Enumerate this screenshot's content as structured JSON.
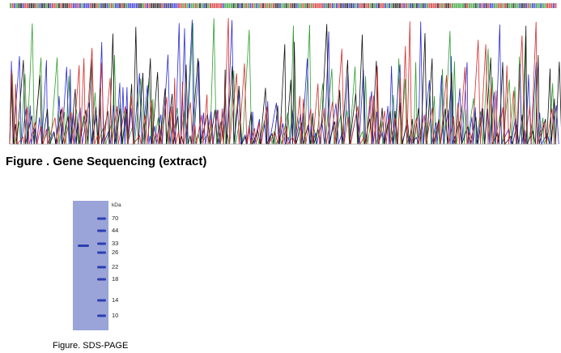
{
  "sequencing": {
    "caption": "Figure . Gene Sequencing (extract)",
    "trace_colors": {
      "A": "#2e9e2e",
      "C": "#2a2ad6",
      "G": "#111111",
      "T": "#d62a2a"
    }
  },
  "gel": {
    "caption": "Figure. SDS-PAGE",
    "unit": "kDa",
    "markers": [
      "70",
      "44",
      "33",
      "26",
      "22",
      "18",
      "14",
      "10"
    ],
    "gel_color": "#9aa4d8",
    "band_color": "#2c3fb0"
  }
}
